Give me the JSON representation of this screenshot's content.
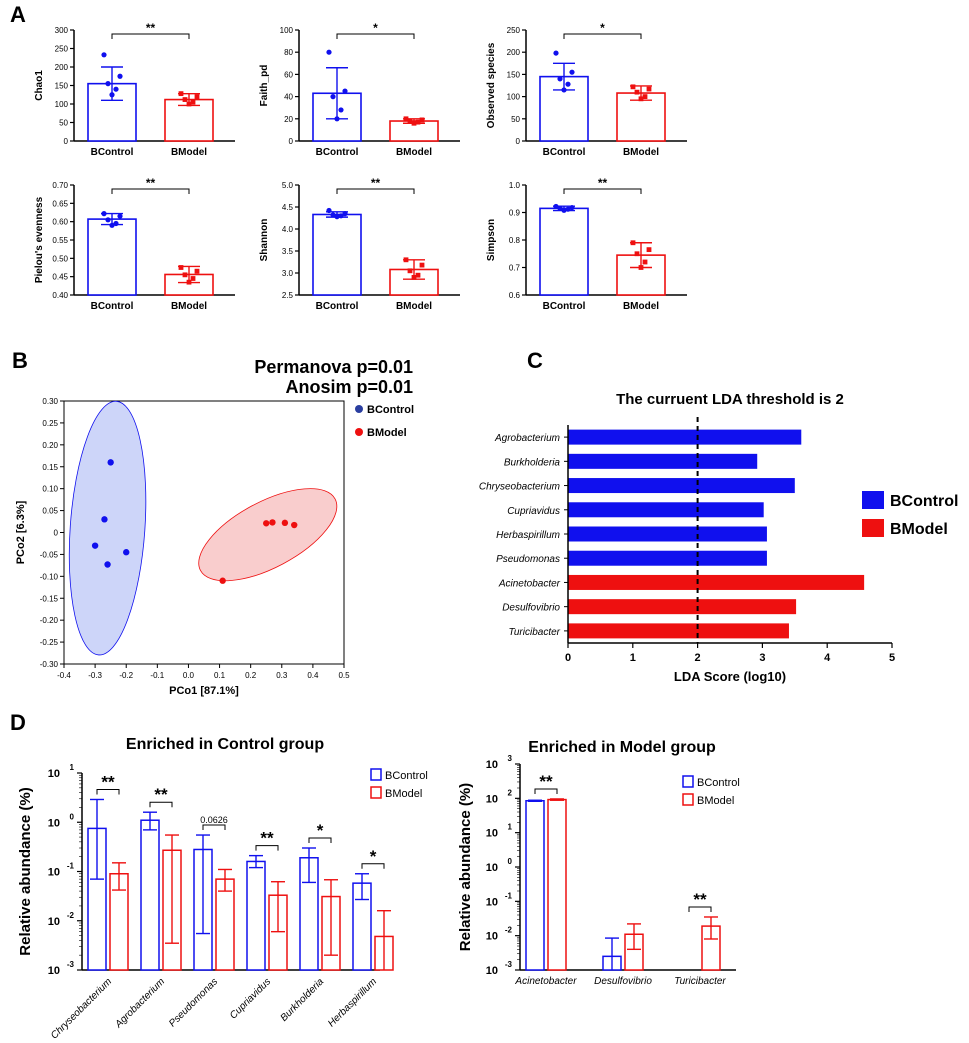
{
  "colors": {
    "control": "#1010ee",
    "model": "#ee1010",
    "ellipse_control": "#c8d0f8",
    "ellipse_model": "#f8c8c8",
    "control_dot": "#2a3ea0"
  },
  "panel_letters": [
    "A",
    "B",
    "C",
    "D"
  ],
  "chart_data": [
    {
      "id": "chao1",
      "type": "bar",
      "ylabel": "Chao1",
      "categories": [
        "BControl",
        "BModel"
      ],
      "values": [
        155,
        112
      ],
      "err": [
        45,
        16
      ],
      "ylim": [
        0,
        300
      ],
      "yticks": [
        "0",
        "50",
        "100",
        "150",
        "200",
        "250",
        "300"
      ],
      "yticks_values": [
        0,
        50,
        100,
        150,
        200,
        250,
        300
      ],
      "points": [
        [
          233,
          175,
          155,
          140,
          125
        ],
        [
          128,
          120,
          112,
          105,
          100
        ]
      ],
      "sig": "**"
    },
    {
      "id": "faith",
      "type": "bar",
      "ylabel": "Faith_pd",
      "categories": [
        "BControl",
        "BModel"
      ],
      "values": [
        43,
        18
      ],
      "err": [
        23,
        2
      ],
      "ylim": [
        0,
        100
      ],
      "yticks": [
        "0",
        "20",
        "40",
        "60",
        "80",
        "100"
      ],
      "yticks_values": [
        0,
        20,
        40,
        60,
        80,
        100
      ],
      "points": [
        [
          80,
          45,
          40,
          28,
          20
        ],
        [
          20,
          19,
          18,
          17,
          16
        ]
      ],
      "sig": "*"
    },
    {
      "id": "observed",
      "type": "bar",
      "ylabel": "Observed species",
      "categories": [
        "BControl",
        "BModel"
      ],
      "values": [
        145,
        108
      ],
      "err": [
        30,
        16
      ],
      "ylim": [
        0,
        250
      ],
      "yticks": [
        "0",
        "50",
        "100",
        "150",
        "200",
        "250"
      ],
      "yticks_values": [
        0,
        50,
        100,
        150,
        200,
        250
      ],
      "points": [
        [
          198,
          155,
          140,
          128,
          115
        ],
        [
          122,
          117,
          110,
          100,
          95
        ]
      ],
      "sig": "*"
    },
    {
      "id": "pielou",
      "type": "bar",
      "ylabel": "Pielou's evenness",
      "categories": [
        "BControl",
        "BModel"
      ],
      "values": [
        0.607,
        0.456
      ],
      "err": [
        0.015,
        0.022
      ],
      "ylim": [
        0.4,
        0.7
      ],
      "yticks": [
        "0.40",
        "0.45",
        "0.50",
        "0.55",
        "0.60",
        "0.65",
        "0.70"
      ],
      "yticks_values": [
        0.4,
        0.45,
        0.5,
        0.55,
        0.6,
        0.65,
        0.7
      ],
      "points": [
        [
          0.622,
          0.615,
          0.605,
          0.595,
          0.59
        ],
        [
          0.475,
          0.465,
          0.455,
          0.445,
          0.435
        ]
      ],
      "sig": "**"
    },
    {
      "id": "shannon",
      "type": "bar",
      "ylabel": "Shannon",
      "categories": [
        "BControl",
        "BModel"
      ],
      "values": [
        4.33,
        3.08
      ],
      "err": [
        0.06,
        0.22
      ],
      "ylim": [
        2.5,
        5.0
      ],
      "yticks": [
        "2.5",
        "3.0",
        "3.5",
        "4.0",
        "4.5",
        "5.0"
      ],
      "yticks_values": [
        2.5,
        3.0,
        3.5,
        4.0,
        4.5,
        5.0
      ],
      "points": [
        [
          4.42,
          4.35,
          4.32,
          4.3,
          4.28
        ],
        [
          3.3,
          3.18,
          3.05,
          2.95,
          2.9
        ]
      ],
      "sig": "**"
    },
    {
      "id": "simpson",
      "type": "bar",
      "ylabel": "Simpson",
      "categories": [
        "BControl",
        "BModel"
      ],
      "values": [
        0.915,
        0.745
      ],
      "err": [
        0.008,
        0.045
      ],
      "ylim": [
        0.6,
        1.0
      ],
      "yticks": [
        "0.6",
        "0.7",
        "0.8",
        "0.9",
        "1.0"
      ],
      "yticks_values": [
        0.6,
        0.7,
        0.8,
        0.9,
        1.0
      ],
      "points": [
        [
          0.922,
          0.918,
          0.915,
          0.912,
          0.908
        ],
        [
          0.79,
          0.765,
          0.75,
          0.72,
          0.7
        ]
      ],
      "sig": "**"
    },
    {
      "id": "pcoa",
      "type": "scatter",
      "title_lines": [
        "Permanova p=0.01",
        "Anosim p=0.01"
      ],
      "xlabel": "PCo1 [87.1%]",
      "ylabel": "PCo2 [6.3%]",
      "xlim": [
        -0.4,
        0.5
      ],
      "ylim": [
        -0.3,
        0.3
      ],
      "xticks": [
        "-0.4",
        "-0.3",
        "-0.2",
        "-0.1",
        "0.0",
        "0.1",
        "0.2",
        "0.3",
        "0.4",
        "0.5"
      ],
      "xticks_values": [
        -0.4,
        -0.3,
        -0.2,
        -0.1,
        0.0,
        0.1,
        0.2,
        0.3,
        0.4,
        0.5
      ],
      "yticks": [
        "0.30",
        "0.25",
        "0.20",
        "0.15",
        "0.10",
        "0.05",
        "0",
        "-0.05",
        "-0.10",
        "-0.15",
        "-0.20",
        "-0.25",
        "-0.30"
      ],
      "yticks_values": [
        0.3,
        0.25,
        0.2,
        0.15,
        0.1,
        0.05,
        0,
        -0.05,
        -0.1,
        -0.15,
        -0.2,
        -0.25,
        -0.3
      ],
      "legend": [
        "BControl",
        "BModel"
      ],
      "series": [
        {
          "name": "BControl",
          "x": [
            -0.25,
            -0.27,
            -0.3,
            -0.2,
            -0.26
          ],
          "y": [
            0.16,
            0.03,
            -0.03,
            -0.045,
            -0.073
          ]
        },
        {
          "name": "BModel",
          "x": [
            0.25,
            0.27,
            0.31,
            0.34,
            0.11
          ],
          "y": [
            0.021,
            0.023,
            0.022,
            0.017,
            -0.11
          ]
        }
      ],
      "ellipses": [
        {
          "name": "BControl",
          "cx": -0.26,
          "cy": 0.01,
          "rx": 0.12,
          "ry": 0.29,
          "angle": 4
        },
        {
          "name": "BModel",
          "cx": 0.255,
          "cy": -0.005,
          "rx": 0.245,
          "ry": 0.075,
          "angle": -28
        }
      ]
    },
    {
      "id": "lda",
      "type": "bar",
      "orientation": "horizontal",
      "title": "The curruent LDA threshold is 2",
      "xlabel": "LDA Score (log10)",
      "xlim": [
        0,
        5
      ],
      "xticks": [
        "0",
        "1",
        "2",
        "3",
        "4",
        "5"
      ],
      "xticks_values": [
        0,
        1,
        2,
        3,
        4,
        5
      ],
      "threshold": 2,
      "categories": [
        "Agrobacterium",
        "Burkholderia",
        "Chryseobacterium",
        "Cupriavidus",
        "Herbaspirillum",
        "Pseudomonas",
        "Acinetobacter",
        "Desulfovibrio",
        "Turicibacter"
      ],
      "values": [
        3.6,
        2.92,
        3.5,
        3.02,
        3.07,
        3.07,
        4.57,
        3.52,
        3.41
      ],
      "groups": [
        "BControl",
        "BControl",
        "BControl",
        "BControl",
        "BControl",
        "BControl",
        "BModel",
        "BModel",
        "BModel"
      ],
      "legend": [
        "BControl",
        "BModel"
      ]
    },
    {
      "id": "enriched_control",
      "type": "bar",
      "scale": "log",
      "title": "Enriched in Control group",
      "ylabel": "Relative abundance (%)",
      "ylim_exp": [
        -3,
        1
      ],
      "ytick_exps": [
        "-3",
        "-2",
        "-1",
        "0",
        "1"
      ],
      "ytick_exp_values": [
        -3,
        -2,
        -1,
        0,
        1
      ],
      "categories": [
        "Chryseobacterium",
        "Agrobacterium",
        "Pseudomonas",
        "Cupriavidus",
        "Burkholderia",
        "Herbaspirillum"
      ],
      "series": [
        {
          "name": "BControl",
          "values": [
            0.75,
            1.1,
            0.28,
            0.16,
            0.19,
            0.058
          ],
          "err_hi": [
            2.9,
            1.6,
            0.55,
            0.21,
            0.3,
            0.09
          ],
          "err_lo": [
            0.07,
            0.7,
            0.0055,
            0.12,
            0.06,
            0.027
          ]
        },
        {
          "name": "BModel",
          "values": [
            0.09,
            0.27,
            0.07,
            0.033,
            0.031,
            0.0048
          ],
          "err_hi": [
            0.15,
            0.55,
            0.11,
            0.062,
            0.068,
            0.016
          ],
          "err_lo": [
            0.042,
            0.0035,
            0.04,
            0.006,
            0.002,
            0.001
          ]
        }
      ],
      "sig": [
        "**",
        "**",
        "0.0626",
        "**",
        "*",
        "*"
      ],
      "legend": [
        "BControl",
        "BModel"
      ]
    },
    {
      "id": "enriched_model",
      "type": "bar",
      "scale": "log",
      "title": "Enriched in Model group",
      "ylabel": "Relative abundance (%)",
      "ylim_exp": [
        -3,
        3
      ],
      "ytick_exps": [
        "-3",
        "-2",
        "-1",
        "0",
        "1",
        "2",
        "3"
      ],
      "ytick_exp_values": [
        -3,
        -2,
        -1,
        0,
        1,
        2,
        3
      ],
      "categories": [
        "Acinetobacter",
        "Desulfovibrio",
        "Turicibacter"
      ],
      "series": [
        {
          "name": "BControl",
          "values": [
            85,
            0.0025,
            null
          ],
          "err_hi": [
            88,
            0.0085,
            null
          ],
          "err_lo": [
            82,
            0.001,
            null
          ]
        },
        {
          "name": "BModel",
          "values": [
            92,
            0.011,
            0.019
          ],
          "err_hi": [
            96,
            0.022,
            0.035
          ],
          "err_lo": [
            88,
            0.004,
            0.008
          ]
        }
      ],
      "sig": [
        "**",
        "",
        "**"
      ],
      "legend": [
        "BControl",
        "BModel"
      ]
    }
  ]
}
